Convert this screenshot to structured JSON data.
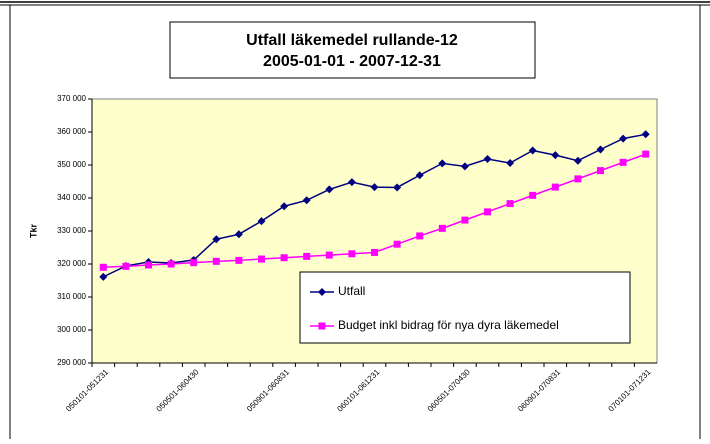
{
  "chart_data": {
    "type": "line",
    "title": "Utfall läkemedel rullande-12",
    "subtitle": "2005-01-01 - 2007-12-31",
    "y_label": "Tkr",
    "categories": [
      "050101-051231",
      null,
      null,
      null,
      "050501-060430",
      null,
      null,
      null,
      "050901-060831",
      null,
      null,
      null,
      "060101-061231",
      null,
      null,
      null,
      "060501-070430",
      null,
      null,
      null,
      "060901-070831",
      null,
      null,
      null,
      "070101-071231"
    ],
    "series": [
      {
        "name": "Utfall",
        "color": "#000080",
        "marker": "diamond",
        "values": [
          316100,
          319400,
          320600,
          320300,
          321200,
          327500,
          329000,
          333000,
          337500,
          339300,
          342600,
          344800,
          343300,
          343200,
          346900,
          350500,
          349600,
          351800,
          350600,
          354400,
          353000,
          351300,
          354700,
          358000,
          359300
        ]
      },
      {
        "name": "Budget inkl bidrag för nya dyra läkemedel",
        "color": "#ff00ff",
        "marker": "square",
        "values": [
          319000,
          319300,
          319700,
          320000,
          320400,
          320800,
          321100,
          321500,
          321900,
          322300,
          322700,
          323100,
          323500,
          326000,
          328500,
          330800,
          333300,
          335800,
          338300,
          340800,
          343300,
          345800,
          348300,
          350800,
          353300
        ]
      }
    ],
    "ylim": [
      290000,
      370000
    ],
    "yticks": [
      {
        "value": 290000,
        "label": "290 000"
      },
      {
        "value": 300000,
        "label": "300 000"
      },
      {
        "value": 310000,
        "label": "310 000"
      },
      {
        "value": 320000,
        "label": "320 000"
      },
      {
        "value": 330000,
        "label": "330 000"
      },
      {
        "value": 340000,
        "label": "340 000"
      },
      {
        "value": 350000,
        "label": "350 000"
      },
      {
        "value": 360000,
        "label": "360 000"
      },
      {
        "value": 370000,
        "label": "370 000"
      }
    ],
    "plot_background": "#ffffcc",
    "legend": "bottom-right"
  }
}
